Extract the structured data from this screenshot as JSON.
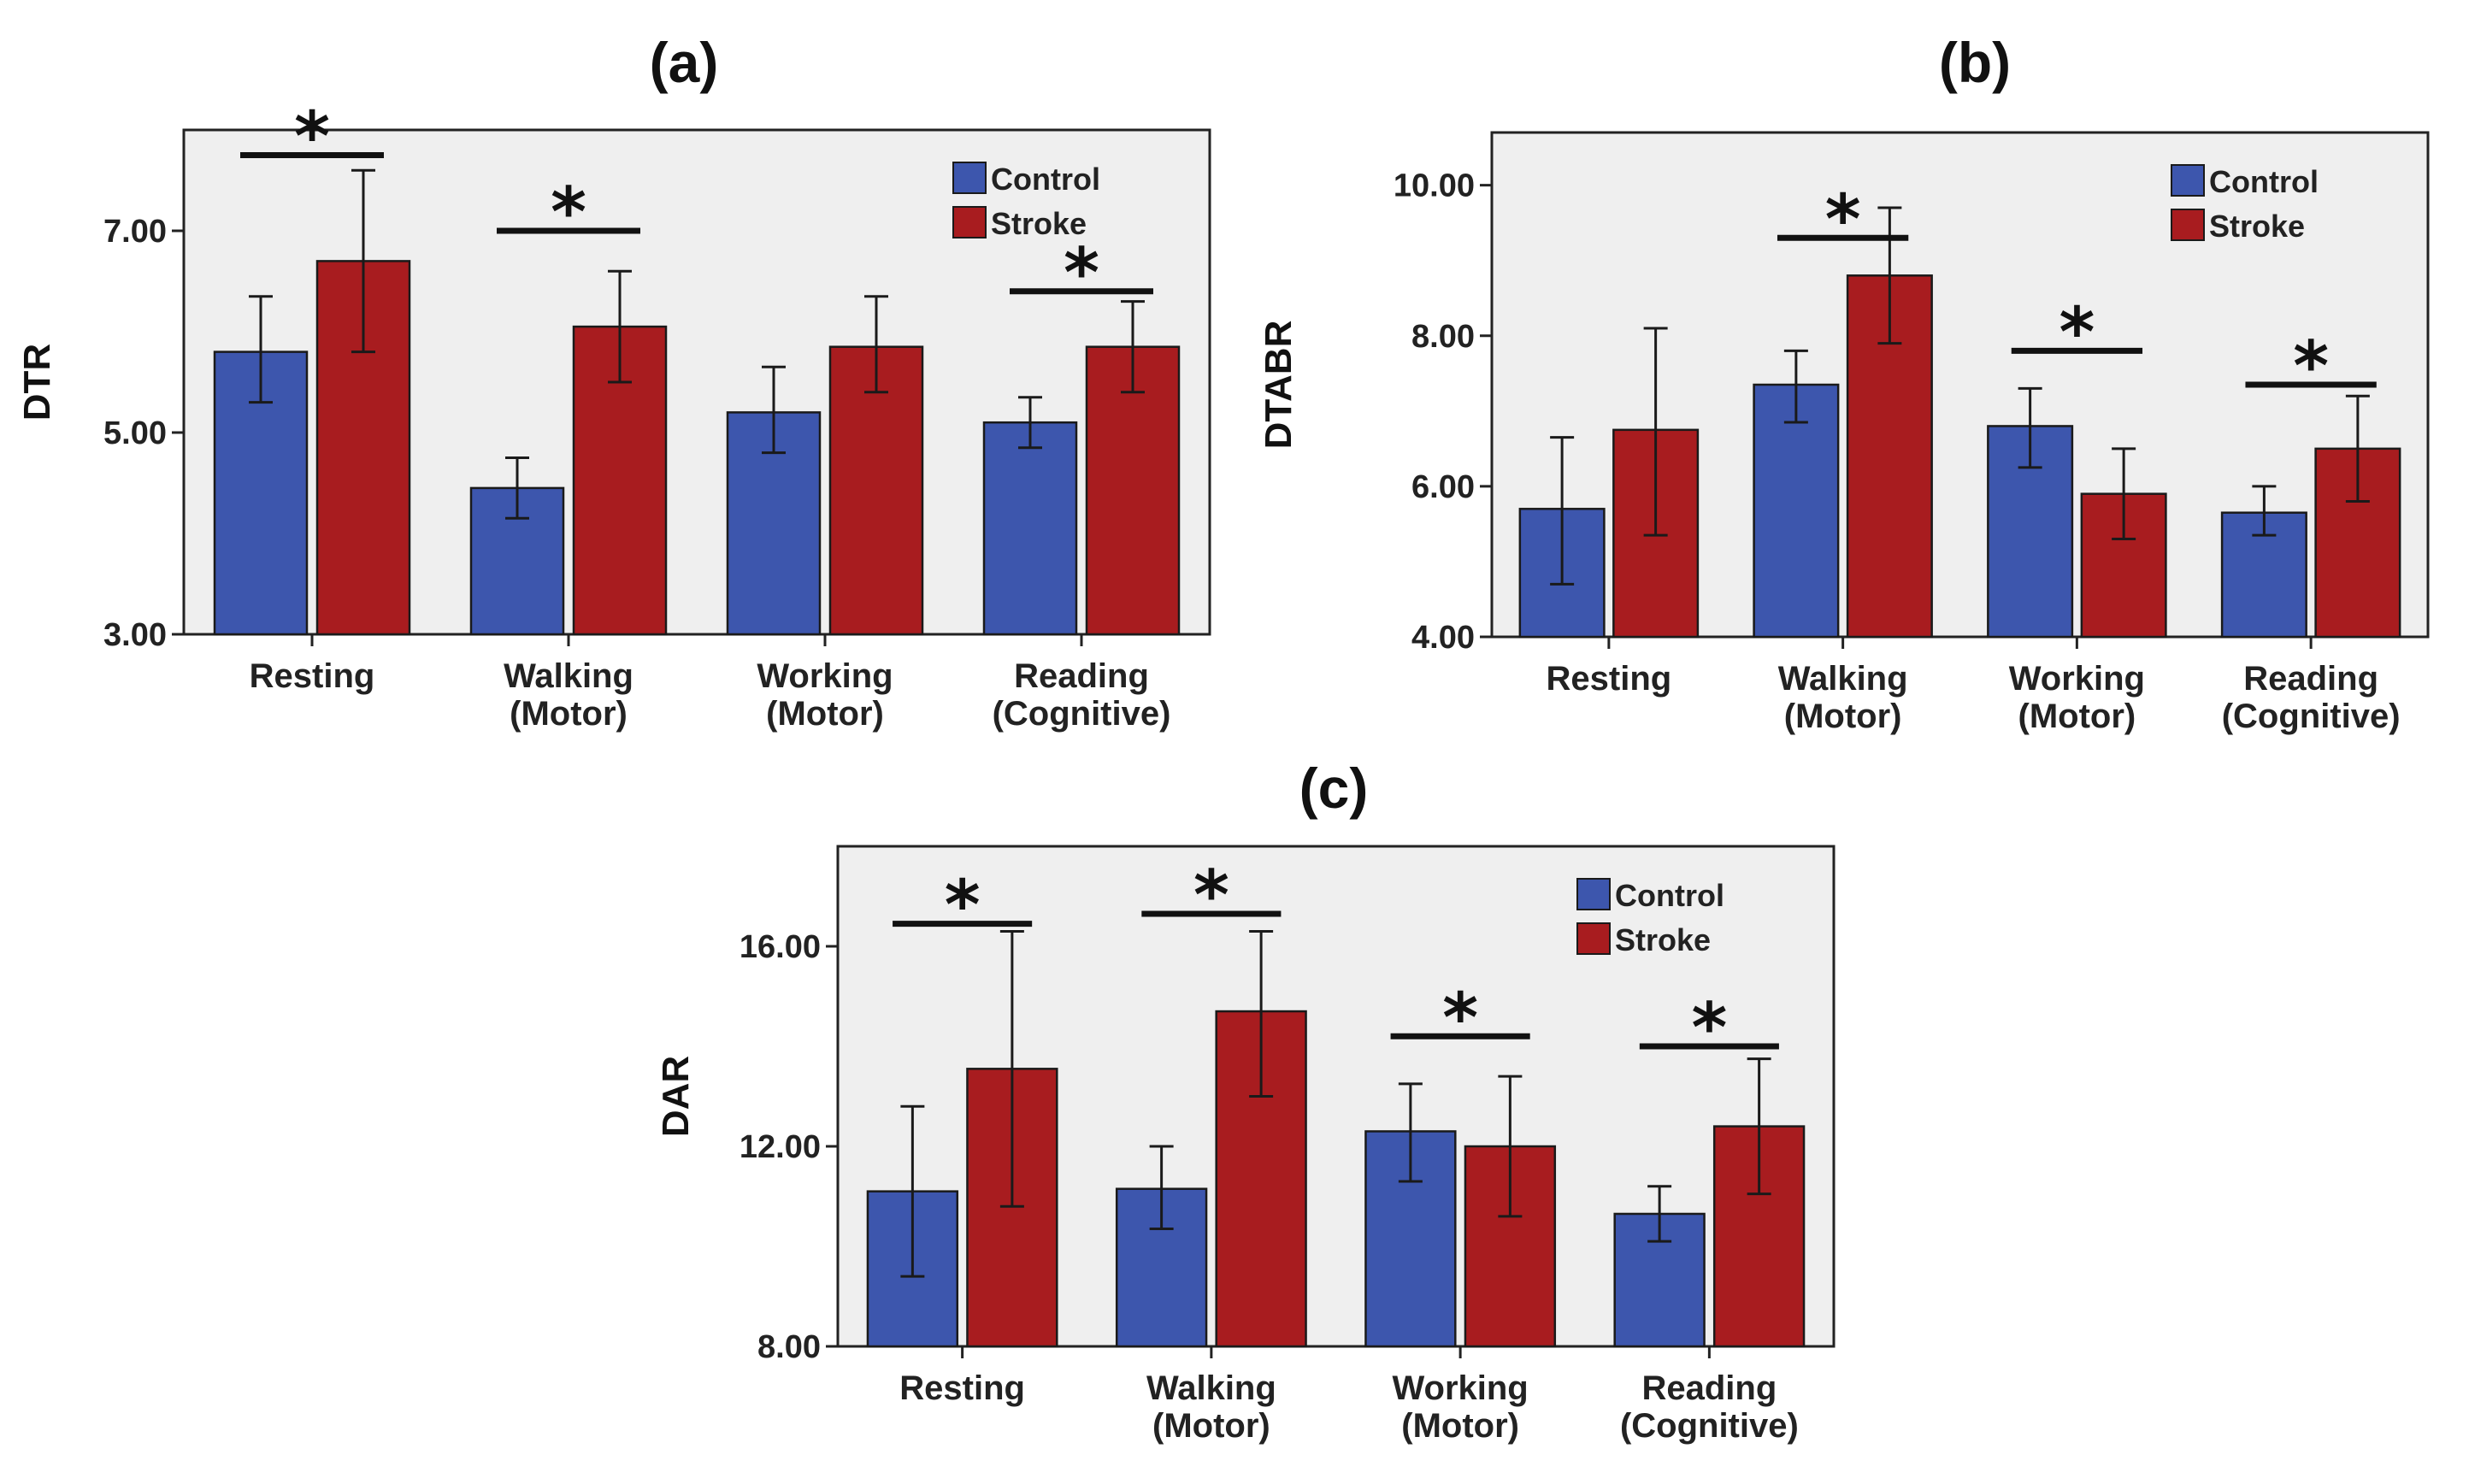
{
  "colors": {
    "control": "#3d56ad",
    "stroke": "#a81c1f",
    "plot_bg": "#efefef",
    "frame": "#222222"
  },
  "chart_data": [
    {
      "type": "bar",
      "title": "(a)",
      "ylabel": "DTR",
      "xlabel": "",
      "ylim": [
        3.0,
        8.0
      ],
      "yticks": [
        "3.00",
        "5.00",
        "7.00"
      ],
      "yticks_values": [
        3.0,
        5.0,
        7.0
      ],
      "categories": [
        [
          "Resting"
        ],
        [
          "Walking",
          "(Motor)"
        ],
        [
          "Working",
          "(Motor)"
        ],
        [
          "Reading",
          "(Cognitive)"
        ]
      ],
      "series": [
        {
          "name": "Control",
          "values": [
            5.8,
            4.45,
            5.2,
            5.1
          ],
          "err_low": [
            5.3,
            4.15,
            4.8,
            4.85
          ],
          "err_high": [
            6.35,
            4.75,
            5.65,
            5.35
          ]
        },
        {
          "name": "Stroke",
          "values": [
            6.7,
            6.05,
            5.85,
            5.85
          ],
          "err_low": [
            5.8,
            5.5,
            5.4,
            5.4
          ],
          "err_high": [
            7.6,
            6.6,
            6.35,
            6.3
          ]
        }
      ],
      "significance": [
        {
          "category": 0,
          "label": "*",
          "bar_y": 7.75
        },
        {
          "category": 1,
          "label": "*",
          "bar_y": 7.0
        },
        {
          "category": 3,
          "label": "*",
          "bar_y": 6.4
        }
      ],
      "legend": {
        "position": "top-right",
        "entries": [
          "Control",
          "Stroke"
        ]
      },
      "grid": false
    },
    {
      "type": "bar",
      "title": "(b)",
      "ylabel": "DTABR",
      "xlabel": "",
      "ylim": [
        4.0,
        10.7
      ],
      "yticks": [
        "4.00",
        "6.00",
        "8.00",
        "10.00"
      ],
      "yticks_values": [
        4.0,
        6.0,
        8.0,
        10.0
      ],
      "categories": [
        [
          "Resting"
        ],
        [
          "Walking",
          "(Motor)"
        ],
        [
          "Working",
          "(Motor)"
        ],
        [
          "Reading",
          "(Cognitive)"
        ]
      ],
      "series": [
        {
          "name": "Control",
          "values": [
            5.7,
            7.35,
            6.8,
            5.65
          ],
          "err_low": [
            4.7,
            6.85,
            6.25,
            5.35
          ],
          "err_high": [
            6.65,
            7.8,
            7.3,
            6.0
          ]
        },
        {
          "name": "Stroke",
          "values": [
            6.75,
            8.8,
            5.9,
            6.5
          ],
          "err_low": [
            5.35,
            7.9,
            5.3,
            5.8
          ],
          "err_high": [
            8.1,
            9.7,
            6.5,
            7.2
          ]
        }
      ],
      "significance": [
        {
          "category": 1,
          "label": "*",
          "bar_y": 9.3
        },
        {
          "category": 2,
          "label": "*",
          "bar_y": 7.8
        },
        {
          "category": 3,
          "label": "*",
          "bar_y": 7.35
        }
      ],
      "legend": {
        "position": "top-right",
        "entries": [
          "Control",
          "Stroke"
        ]
      },
      "grid": false
    },
    {
      "type": "bar",
      "title": "(c)",
      "ylabel": "DAR",
      "xlabel": "",
      "ylim": [
        8.0,
        18.0
      ],
      "yticks": [
        "8.00",
        "12.00",
        "16.00"
      ],
      "yticks_values": [
        8.0,
        12.0,
        16.0
      ],
      "categories": [
        [
          "Resting"
        ],
        [
          "Walking",
          "(Motor)"
        ],
        [
          "Working",
          "(Motor)"
        ],
        [
          "Reading",
          "(Cognitive)"
        ]
      ],
      "series": [
        {
          "name": "Control",
          "values": [
            11.1,
            11.15,
            12.3,
            10.65
          ],
          "err_low": [
            9.4,
            10.35,
            11.3,
            10.1
          ],
          "err_high": [
            12.8,
            12.0,
            13.25,
            11.2
          ]
        },
        {
          "name": "Stroke",
          "values": [
            13.55,
            14.7,
            12.0,
            12.4
          ],
          "err_low": [
            10.8,
            13.0,
            10.6,
            11.05
          ],
          "err_high": [
            16.3,
            16.3,
            13.4,
            13.75
          ]
        }
      ],
      "significance": [
        {
          "category": 0,
          "label": "*",
          "bar_y": 16.45
        },
        {
          "category": 1,
          "label": "*",
          "bar_y": 16.65
        },
        {
          "category": 2,
          "label": "*",
          "bar_y": 14.2
        },
        {
          "category": 3,
          "label": "*",
          "bar_y": 14.0
        }
      ],
      "legend": {
        "position": "top-right",
        "entries": [
          "Control",
          "Stroke"
        ]
      },
      "grid": false
    }
  ]
}
